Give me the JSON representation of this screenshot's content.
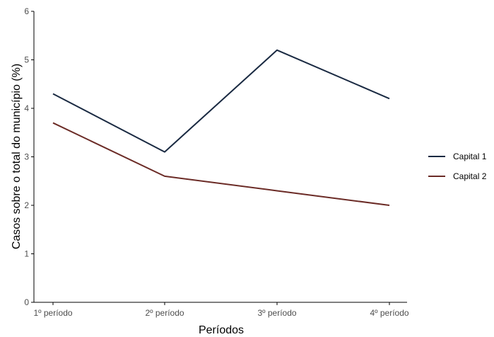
{
  "chart_data": {
    "type": "line",
    "categories": [
      "1º período",
      "2º período",
      "3º período",
      "4º período"
    ],
    "series": [
      {
        "name": "Capital 1",
        "values": [
          4.3,
          3.1,
          5.2,
          4.2
        ],
        "color": "#1a2a42"
      },
      {
        "name": "Capital 2",
        "values": [
          3.7,
          2.6,
          2.3,
          2.0
        ],
        "color": "#6b2b26"
      }
    ],
    "y_ticks": [
      "0",
      "1",
      "2",
      "3",
      "4",
      "5",
      "6"
    ],
    "xlabel": "Períodos",
    "ylabel": "Casos sobre o total  do município (%)",
    "ylim": [
      0,
      6
    ],
    "grid": false,
    "legend_position": "right"
  }
}
